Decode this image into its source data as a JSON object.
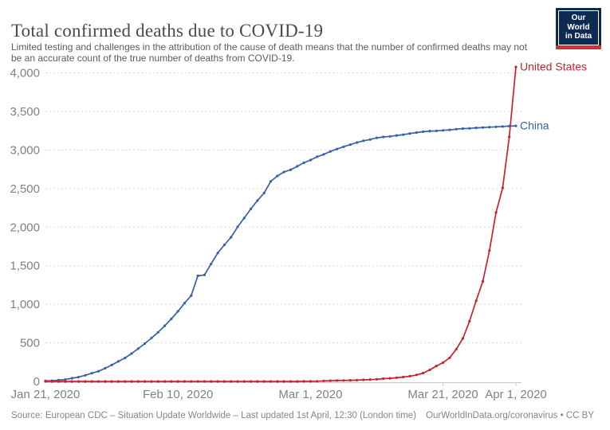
{
  "header": {
    "title": "Total confirmed deaths due to COVID-19",
    "subtitle": "Limited testing and challenges in the attribution of the cause of death means that the number of confirmed deaths may not be an accurate count of the true number of deaths from COVID-19.",
    "logo_line1": "Our World",
    "logo_line2": "in Data"
  },
  "footer": {
    "source": "Source: European CDC – Situation Update Worldwide – Last updated 1st April, 12:30 (London time)",
    "license": "OurWorldInData.org/coronavirus • CC BY"
  },
  "colors": {
    "united_states": "#c8232c",
    "china": "#3761a7",
    "logo_navy": "#0d2b52",
    "logo_red": "#ce342b"
  },
  "chart_data": {
    "type": "line",
    "title": "Total confirmed deaths due to COVID-19",
    "xlabel": "",
    "ylabel": "",
    "ylim": [
      0,
      4000
    ],
    "x_start_date": "Jan 21, 2020",
    "x_end_date": "Apr 1, 2020",
    "grid": true,
    "legend_position": "line-end-labels",
    "y_ticks": [
      {
        "value": 0,
        "label": "0"
      },
      {
        "value": 500,
        "label": "500"
      },
      {
        "value": 1000,
        "label": "1,000"
      },
      {
        "value": 1500,
        "label": "1,500"
      },
      {
        "value": 2000,
        "label": "2,000"
      },
      {
        "value": 2500,
        "label": "2,500"
      },
      {
        "value": 3000,
        "label": "3,000"
      },
      {
        "value": 3500,
        "label": "3,500"
      },
      {
        "value": 4000,
        "label": "4,000"
      }
    ],
    "x_ticks": [
      {
        "day": 0,
        "label": "Jan 21, 2020",
        "tick": false
      },
      {
        "day": 20,
        "label": "Feb 10, 2020",
        "tick": false
      },
      {
        "day": 40,
        "label": "Mar 1, 2020",
        "tick": false
      },
      {
        "day": 60,
        "label": "Mar 21, 2020",
        "tick": true
      },
      {
        "day": 71,
        "label": "Apr 1, 2020",
        "tick": true
      }
    ],
    "style": {
      "grid_color": "#dbdbdb",
      "axis_color": "#c9c9c9",
      "tick_text_color": "#818181",
      "tick_font_size": 15,
      "label_font_size": 14,
      "line_width": 1.7,
      "marker_radius": 1.6
    },
    "series": [
      {
        "id": "china",
        "name": "China",
        "color": "#3761a7",
        "values": [
          6,
          9,
          17,
          25,
          41,
          56,
          80,
          106,
          132,
          170,
          213,
          259,
          304,
          361,
          425,
          490,
          563,
          637,
          722,
          811,
          908,
          1016,
          1113,
          1369,
          1380,
          1523,
          1665,
          1770,
          1868,
          2004,
          2118,
          2236,
          2345,
          2442,
          2592,
          2663,
          2715,
          2744,
          2788,
          2835,
          2870,
          2912,
          2943,
          2981,
          3013,
          3042,
          3070,
          3097,
          3119,
          3136,
          3158,
          3169,
          3176,
          3189,
          3199,
          3213,
          3226,
          3237,
          3245,
          3248,
          3255,
          3261,
          3270,
          3277,
          3281,
          3287,
          3292,
          3296,
          3300,
          3304,
          3309,
          3312
        ]
      },
      {
        "id": "united-states",
        "name": "United States",
        "color": "#c8232c",
        "values": [
          0,
          0,
          0,
          0,
          0,
          0,
          0,
          0,
          0,
          0,
          0,
          0,
          0,
          0,
          0,
          0,
          0,
          0,
          0,
          0,
          0,
          0,
          0,
          0,
          0,
          0,
          0,
          0,
          0,
          0,
          0,
          0,
          0,
          0,
          0,
          0,
          0,
          0,
          0,
          1,
          1,
          2,
          6,
          9,
          11,
          12,
          14,
          17,
          21,
          24,
          28,
          36,
          40,
          47,
          57,
          68,
          85,
          108,
          150,
          200,
          244,
          307,
          417,
          557,
          780,
          1046,
          1296,
          1695,
          2191,
          2509,
          3170,
          4076
        ]
      }
    ]
  }
}
